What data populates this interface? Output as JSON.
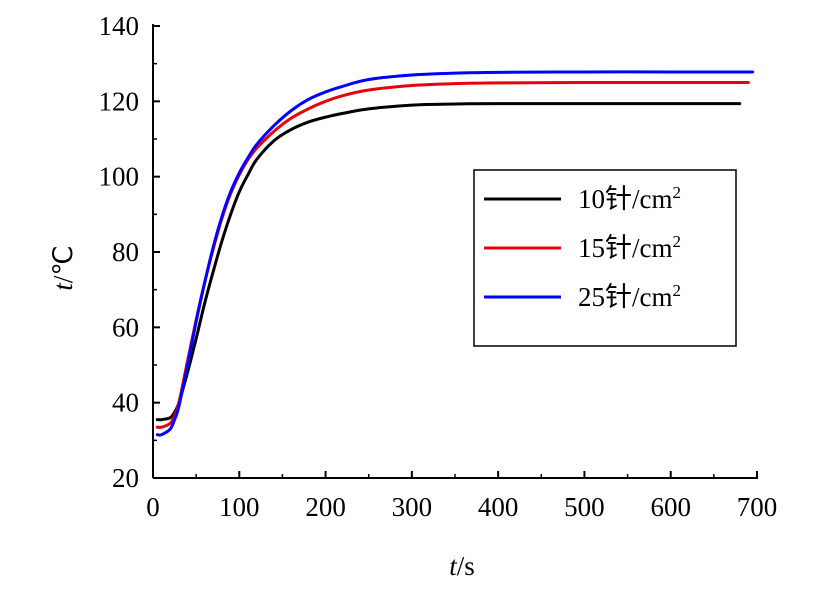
{
  "chart_data": {
    "type": "line",
    "xlabel_var": "t",
    "xlabel_unit": "/s",
    "ylabel_var": "t",
    "ylabel_unit": "/℃",
    "xlim": [
      0,
      700
    ],
    "ylim": [
      20,
      140
    ],
    "x_ticks": [
      0,
      100,
      200,
      300,
      400,
      500,
      600,
      700
    ],
    "y_ticks": [
      20,
      40,
      60,
      80,
      100,
      120,
      140
    ],
    "grid": false,
    "legend_position": "right",
    "series": [
      {
        "name": "10针/cm",
        "superscript": "2",
        "color": "#000000",
        "x": [
          5,
          10,
          20,
          25,
          30,
          40,
          50,
          60,
          70,
          80,
          90,
          100,
          110,
          120,
          140,
          160,
          180,
          200,
          220,
          250,
          300,
          350,
          400,
          500,
          600,
          680
        ],
        "y": [
          35.5,
          35.5,
          36,
          37.5,
          40,
          48,
          57,
          66.5,
          75,
          83,
          90,
          96,
          100.5,
          104.5,
          109.5,
          112.5,
          114.5,
          115.8,
          116.8,
          118,
          119,
          119.3,
          119.4,
          119.4,
          119.4,
          119.4
        ]
      },
      {
        "name": "15针/cm",
        "superscript": "2",
        "color": "#e8000b",
        "x": [
          5,
          10,
          20,
          25,
          30,
          40,
          50,
          60,
          70,
          80,
          90,
          100,
          110,
          120,
          140,
          160,
          180,
          200,
          220,
          250,
          300,
          350,
          400,
          500,
          600,
          690
        ],
        "y": [
          33.5,
          33.5,
          34.5,
          36.5,
          40,
          51,
          62,
          72,
          81,
          89,
          95.5,
          100.5,
          104.5,
          107.5,
          112,
          115.5,
          118,
          120,
          121.5,
          123,
          124.2,
          124.7,
          124.9,
          125,
          125,
          125
        ]
      },
      {
        "name": "25针/cm",
        "superscript": "2",
        "color": "#0000ff",
        "x": [
          5,
          10,
          20,
          25,
          30,
          40,
          50,
          60,
          70,
          80,
          90,
          100,
          110,
          120,
          140,
          160,
          180,
          200,
          220,
          250,
          300,
          350,
          400,
          500,
          600,
          695
        ],
        "y": [
          31.5,
          31.5,
          33,
          35.5,
          39,
          50,
          61.5,
          72,
          81.5,
          89.5,
          96,
          101,
          105,
          108.5,
          113.5,
          117.5,
          120.5,
          122.5,
          124,
          125.8,
          127,
          127.5,
          127.7,
          127.8,
          127.8,
          127.8
        ]
      }
    ]
  }
}
